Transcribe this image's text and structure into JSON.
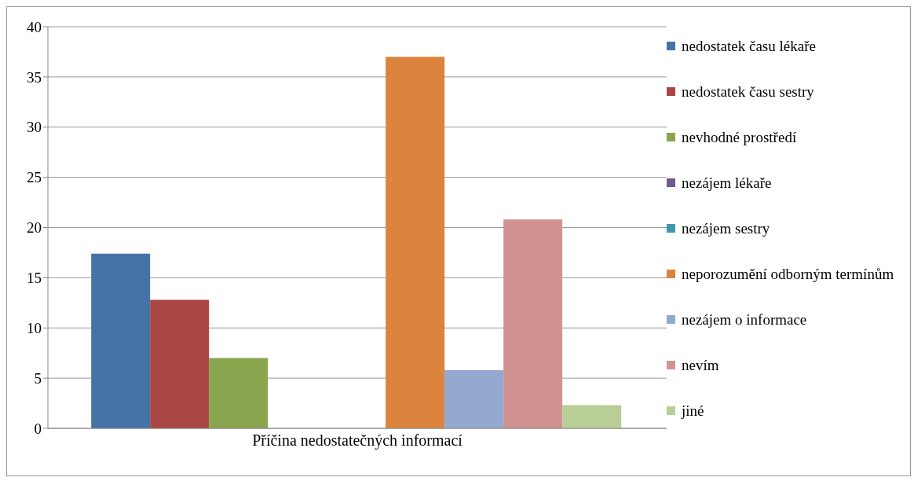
{
  "chart_data": {
    "type": "bar",
    "categories": [
      "Příčina nedostatečných informací"
    ],
    "series": [
      {
        "name": "nedostatek času lékaře",
        "color": "#4572a7",
        "values": [
          17.4
        ]
      },
      {
        "name": "nedostatek času sestry",
        "color": "#aa4643",
        "values": [
          12.8
        ]
      },
      {
        "name": "nevhodné prostředí",
        "color": "#89a54e",
        "values": [
          7.0
        ]
      },
      {
        "name": "nezájem lékaře",
        "color": "#71588f",
        "values": [
          0
        ]
      },
      {
        "name": "nezájem sestry",
        "color": "#4198af",
        "values": [
          0
        ]
      },
      {
        "name": "neporozumění odborným termínům",
        "color": "#db843d",
        "values": [
          37.0
        ]
      },
      {
        "name": "nezájem o informace",
        "color": "#93a9cf",
        "values": [
          5.8
        ]
      },
      {
        "name": "nevím",
        "color": "#d19392",
        "values": [
          20.8
        ]
      },
      {
        "name": "jiné",
        "color": "#b9cd96",
        "values": [
          2.3
        ]
      }
    ],
    "ylim": [
      0,
      40
    ],
    "yticks": [
      0,
      5,
      10,
      15,
      20,
      25,
      30,
      35,
      40
    ],
    "grid": "y",
    "legend": "right"
  }
}
